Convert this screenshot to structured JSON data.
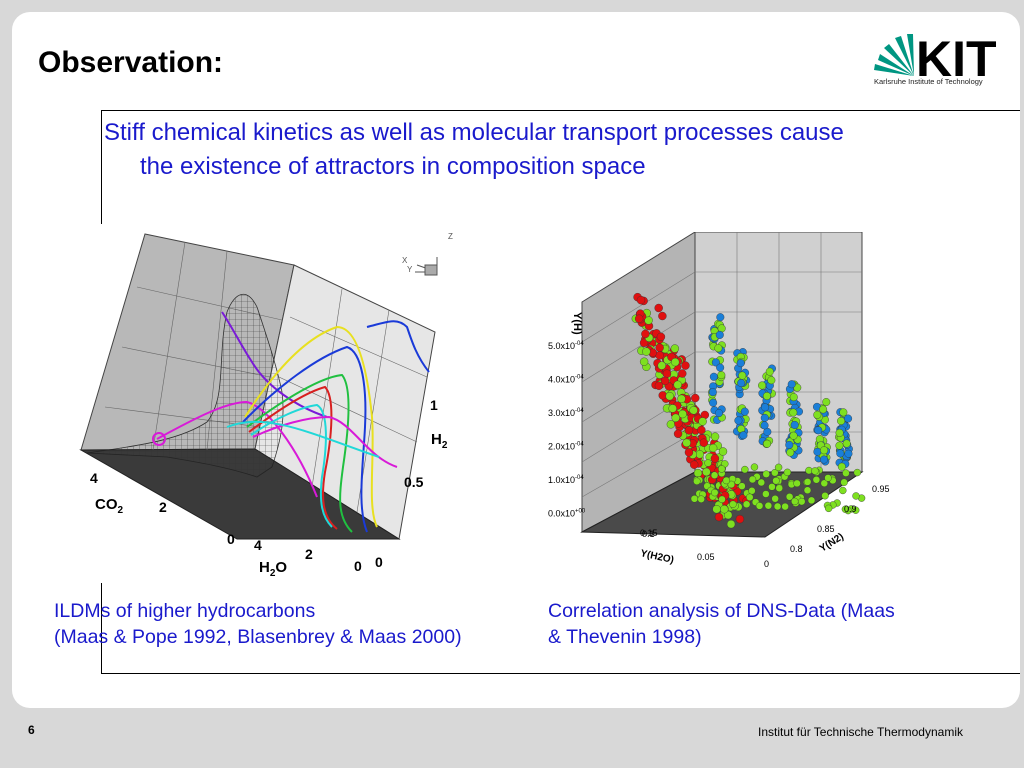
{
  "slide": {
    "title": "Observation:",
    "bullet": "Stiff chemical kinetics as well as molecular transport processes cause the existence of attractors in composition space",
    "bullet_line1": "Stiff chemical kinetics as well as molecular transport processes cause",
    "bullet_line2": "the existence of attractors in composition space",
    "caption_left_line1": "ILDMs of higher hydrocarbons",
    "caption_left_line2": "(Maas & Pope 1992, Blasenbrey & Maas 2000)",
    "caption_right_line1": "Correlation analysis of DNS-Data (Maas",
    "caption_right_line2": "& Thevenin 1998)",
    "page_number": "6",
    "institute": "Institut für Technische Thermodynamik"
  },
  "logo": {
    "wordmark": "KIT",
    "subtitle": "Karlsruhe Institute of Technology",
    "color_green": "#009682"
  },
  "figure_left": {
    "axis_h2_label": "H",
    "axis_h2_sub": "2",
    "axis_co2_label": "CO",
    "axis_co2_sub": "2",
    "axis_h2o_label": "H",
    "axis_h2o_sub": "2",
    "axis_h2o_tail": "O",
    "h2_ticks": [
      "1",
      "0.5",
      "0"
    ],
    "co2_ticks": [
      "4",
      "2",
      "0"
    ],
    "h2o_ticks": [
      "4",
      "2",
      "0"
    ],
    "orient_x": "X",
    "orient_y": "Y",
    "orient_z": "Z"
  },
  "figure_right": {
    "y_label": "Y(H)",
    "x_label": "Y(H2O)",
    "z_label": "Y(N2)",
    "y_ticks": [
      "5.0x10",
      "4.0x10",
      "3.0x10",
      "2.0x10",
      "1.0x10",
      "0.0x10"
    ],
    "y_exps": [
      "-04",
      "-04",
      "-04",
      "-04",
      "-04",
      "+00"
    ],
    "h2o_ticks": [
      "0.15",
      "0.1",
      "0.05",
      "0"
    ],
    "n2_ticks": [
      "0.95",
      "0.9",
      "0.85",
      "0.8"
    ],
    "colors": {
      "red": "#e01010",
      "green": "#7ee020",
      "blue": "#1a7fd8"
    }
  }
}
